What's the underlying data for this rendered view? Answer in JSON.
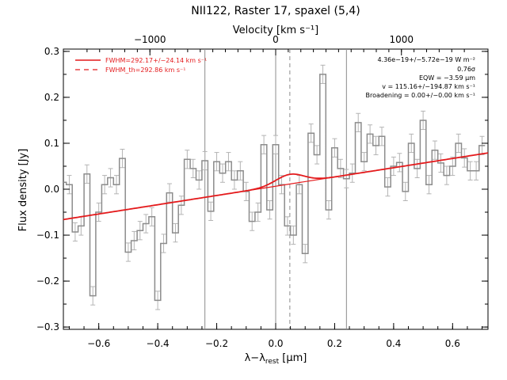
{
  "chart_data": {
    "type": "line",
    "title": "NII122, Raster 17, spaxel (5,4)",
    "xlabel_main": "λ−λ",
    "xlabel_sub": "rest",
    "xlabel_unit": " [μm]",
    "ylabel": "Flux density [Jy]",
    "top_axis_label": "Velocity [km s⁻¹]",
    "xlim": [
      -0.72,
      0.72
    ],
    "ylim": [
      -0.305,
      0.305
    ],
    "x_ticks": [
      -0.6,
      -0.4,
      -0.2,
      0.0,
      0.2,
      0.4,
      0.6
    ],
    "x_tick_labels": [
      "−0.6",
      "−0.4",
      "−0.2",
      "0.0",
      "0.2",
      "0.4",
      "0.6"
    ],
    "y_ticks": [
      -0.3,
      -0.2,
      -0.1,
      0.0,
      0.1,
      0.2,
      0.3
    ],
    "y_tick_labels": [
      "−0.3",
      "−0.2",
      "−0.1",
      "0.0",
      "0.1",
      "0.2",
      "0.3"
    ],
    "top_ticks_x": [
      -1.0,
      0.0,
      1.0
    ],
    "top_tick_labels": [
      "−1000",
      "0",
      "1000"
    ],
    "vertical_lines_solid": [
      -0.24,
      0.0,
      0.24
    ],
    "vertical_line_dashed": 0.048,
    "spectrum": {
      "x": [
        -0.72,
        -0.7,
        -0.68,
        -0.66,
        -0.64,
        -0.62,
        -0.6,
        -0.58,
        -0.56,
        -0.54,
        -0.52,
        -0.5,
        -0.48,
        -0.46,
        -0.44,
        -0.42,
        -0.4,
        -0.38,
        -0.36,
        -0.34,
        -0.32,
        -0.3,
        -0.28,
        -0.26,
        -0.24,
        -0.22,
        -0.2,
        -0.18,
        -0.16,
        -0.14,
        -0.12,
        -0.1,
        -0.08,
        -0.06,
        -0.04,
        -0.02,
        0.0,
        0.02,
        0.04,
        0.06,
        0.08,
        0.1,
        0.12,
        0.14,
        0.16,
        0.18,
        0.2,
        0.22,
        0.24,
        0.26,
        0.28,
        0.3,
        0.32,
        0.34,
        0.36,
        0.38,
        0.4,
        0.42,
        0.44,
        0.46,
        0.48,
        0.5,
        0.52,
        0.54,
        0.56,
        0.58,
        0.6,
        0.62,
        0.64,
        0.66,
        0.68,
        0.7
      ],
      "y": [
        0.015,
        0.01,
        -0.093,
        -0.08,
        0.033,
        -0.232,
        -0.05,
        0.01,
        0.025,
        0.01,
        0.067,
        -0.137,
        -0.112,
        -0.09,
        -0.075,
        -0.06,
        -0.242,
        -0.118,
        -0.008,
        -0.095,
        -0.035,
        0.065,
        0.045,
        0.02,
        0.062,
        -0.048,
        0.06,
        0.035,
        0.06,
        0.02,
        0.04,
        -0.005,
        -0.07,
        -0.05,
        0.097,
        -0.045,
        0.097,
        0.01,
        -0.08,
        -0.1,
        0.01,
        -0.14,
        0.122,
        0.075,
        0.25,
        -0.045,
        0.09,
        0.045,
        0.023,
        0.035,
        0.145,
        0.06,
        0.12,
        0.095,
        0.115,
        0.005,
        0.05,
        0.058,
        -0.005,
        0.1,
        0.045,
        0.15,
        0.01,
        0.085,
        0.057,
        0.03,
        0.05,
        0.1,
        0.068,
        0.04,
        0.04,
        0.095
      ],
      "err": 0.02
    },
    "fit": {
      "baseline_start": [
        -0.72,
        -0.066
      ],
      "baseline_end": [
        0.72,
        0.079
      ],
      "gaussian_center": 0.048,
      "gaussian_amplitude": 0.021,
      "gaussian_fwhm_um": 0.112
    },
    "legend": [
      {
        "label": "FWHM=292.17+/−24.14 km s⁻¹",
        "style": "solid"
      },
      {
        "label": "FWHM_th=292.86 km s⁻¹",
        "style": "dashed"
      }
    ],
    "annotations": [
      "4.36e−19+/−5.72e−19 W m⁻²",
      "0.76σ",
      "EQW = −3.59 μm",
      "v = 115.16+/−194.87 km s⁻¹",
      "Broadening = 0.00+/−0.00 km s⁻¹"
    ]
  },
  "colors": {
    "spectrum": "#8c8c8c",
    "error_bar": "#b4b4b4",
    "fit": "#e41a1c",
    "reference_line": "#8c8c8c",
    "axes": "#000000"
  }
}
